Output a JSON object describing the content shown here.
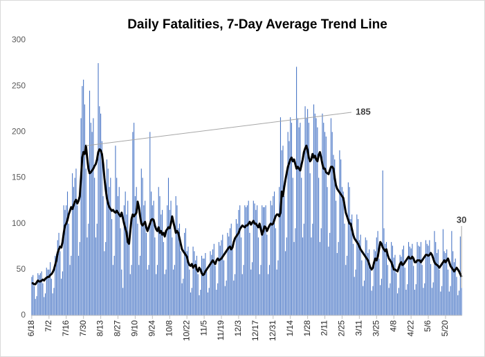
{
  "chart_data": {
    "type": "combo",
    "title": "Daily Fatalities, 7-Day Average Trend Line",
    "categories": [
      "6/18",
      null,
      null,
      null,
      null,
      null,
      null,
      null,
      null,
      null,
      null,
      null,
      null,
      null,
      "7/2",
      null,
      null,
      null,
      null,
      null,
      null,
      null,
      null,
      null,
      null,
      null,
      null,
      null,
      "7/16",
      null,
      null,
      null,
      null,
      null,
      null,
      null,
      null,
      null,
      null,
      null,
      null,
      null,
      "7/30",
      null,
      null,
      null,
      null,
      null,
      null,
      null,
      null,
      null,
      null,
      null,
      null,
      null,
      "8/13",
      null,
      null,
      null,
      null,
      null,
      null,
      null,
      null,
      null,
      null,
      null,
      null,
      null,
      "8/27",
      null,
      null,
      null,
      null,
      null,
      null,
      null,
      null,
      null,
      null,
      null,
      null,
      null,
      "9/10",
      null,
      null,
      null,
      null,
      null,
      null,
      null,
      null,
      null,
      null,
      null,
      null,
      null,
      "9/24",
      null,
      null,
      null,
      null,
      null,
      null,
      null,
      null,
      null,
      null,
      null,
      null,
      null,
      "10/8",
      null,
      null,
      null,
      null,
      null,
      null,
      null,
      null,
      null,
      null,
      null,
      null,
      null,
      "10/22",
      null,
      null,
      null,
      null,
      null,
      null,
      null,
      null,
      null,
      null,
      null,
      null,
      null,
      "11/5",
      null,
      null,
      null,
      null,
      null,
      null,
      null,
      null,
      null,
      null,
      null,
      null,
      null,
      "11/19",
      null,
      null,
      null,
      null,
      null,
      null,
      null,
      null,
      null,
      null,
      null,
      null,
      null,
      "12/3",
      null,
      null,
      null,
      null,
      null,
      null,
      null,
      null,
      null,
      null,
      null,
      null,
      null,
      "12/17",
      null,
      null,
      null,
      null,
      null,
      null,
      null,
      null,
      null,
      null,
      null,
      null,
      null,
      "12/31",
      null,
      null,
      null,
      null,
      null,
      null,
      null,
      null,
      null,
      null,
      null,
      null,
      null,
      "1/14",
      null,
      null,
      null,
      null,
      null,
      null,
      null,
      null,
      null,
      null,
      null,
      null,
      null,
      "1/28",
      null,
      null,
      null,
      null,
      null,
      null,
      null,
      null,
      null,
      null,
      null,
      null,
      null,
      "2/11",
      null,
      null,
      null,
      null,
      null,
      null,
      null,
      null,
      null,
      null,
      null,
      null,
      null,
      "2/25",
      null,
      null,
      null,
      null,
      null,
      null,
      null,
      null,
      null,
      null,
      null,
      null,
      null,
      "3/11",
      null,
      null,
      null,
      null,
      null,
      null,
      null,
      null,
      null,
      null,
      null,
      null,
      null,
      "3/25",
      null,
      null,
      null,
      null,
      null,
      null,
      null,
      null,
      null,
      null,
      null,
      null,
      null,
      "4/8",
      null,
      null,
      null,
      null,
      null,
      null,
      null,
      null,
      null,
      null,
      null,
      null,
      null,
      "4/22",
      null,
      null,
      null,
      null,
      null,
      null,
      null,
      null,
      null,
      null,
      null,
      null,
      null,
      "5/6",
      null,
      null,
      null,
      null,
      null,
      null,
      null,
      null,
      null,
      null,
      null,
      null,
      null,
      "5/20",
      null,
      null,
      null,
      null,
      null,
      null,
      null,
      null,
      null,
      null,
      null,
      null,
      null
    ],
    "series": [
      {
        "kind": "bar",
        "color": "#4472c4",
        "values": [
          42,
          44,
          32,
          18,
          21,
          46,
          44,
          46,
          48,
          35,
          20,
          24,
          52,
          50,
          50,
          58,
          40,
          24,
          30,
          65,
          67,
          82,
          90,
          70,
          40,
          48,
          120,
          115,
          120,
          135,
          100,
          55,
          65,
          155,
          140,
          150,
          160,
          120,
          65,
          80,
          215,
          250,
          257,
          230,
          160,
          85,
          100,
          245,
          210,
          200,
          215,
          150,
          85,
          100,
          275,
          228,
          220,
          190,
          130,
          70,
          80,
          170,
          160,
          140,
          150,
          105,
          55,
          65,
          185,
          150,
          130,
          140,
          95,
          50,
          30,
          120,
          135,
          110,
          125,
          85,
          45,
          55,
          200,
          210,
          130,
          140,
          100,
          55,
          65,
          160,
          150,
          120,
          125,
          90,
          50,
          55,
          200,
          135,
          120,
          125,
          85,
          45,
          55,
          140,
          130,
          110,
          115,
          80,
          45,
          50,
          120,
          150,
          115,
          125,
          85,
          50,
          55,
          130,
          120,
          95,
          100,
          70,
          35,
          40,
          90,
          95,
          70,
          75,
          50,
          25,
          30,
          75,
          70,
          60,
          65,
          45,
          22,
          28,
          65,
          62,
          62,
          68,
          48,
          25,
          30,
          70,
          66,
          72,
          78,
          54,
          28,
          35,
          80,
          76,
          82,
          88,
          60,
          32,
          38,
          90,
          86,
          95,
          100,
          72,
          38,
          45,
          105,
          100,
          115,
          120,
          85,
          45,
          55,
          120,
          118,
          120,
          125,
          90,
          50,
          58,
          125,
          122,
          115,
          120,
          85,
          45,
          55,
          120,
          118,
          118,
          120,
          88,
          45,
          55,
          125,
          120,
          130,
          135,
          95,
          50,
          60,
          140,
          216,
          180,
          185,
          130,
          70,
          85,
          200,
          190,
          216,
          210,
          150,
          80,
          95,
          271,
          215,
          205,
          210,
          150,
          85,
          100,
          228,
          215,
          225,
          210,
          155,
          85,
          100,
          230,
          220,
          215,
          205,
          150,
          80,
          95,
          220,
          210,
          200,
          195,
          140,
          75,
          90,
          215,
          200,
          175,
          170,
          125,
          68,
          80,
          180,
          170,
          140,
          135,
          100,
          55,
          65,
          145,
          140,
          105,
          110,
          78,
          42,
          50,
          110,
          105,
          82,
          88,
          60,
          32,
          38,
          85,
          82,
          68,
          72,
          50,
          27,
          32,
          72,
          70,
          85,
          92,
          62,
          33,
          40,
          158,
          95,
          78,
          80,
          55,
          30,
          35,
          80,
          76,
          63,
          66,
          46,
          24,
          30,
          66,
          64,
          72,
          76,
          52,
          28,
          34,
          80,
          75,
          73,
          78,
          54,
          28,
          34,
          80,
          76,
          75,
          80,
          55,
          30,
          35,
          82,
          78,
          76,
          82,
          56,
          30,
          36,
          92,
          80,
          68,
          72,
          50,
          26,
          32,
          94,
          70,
          68,
          72,
          50,
          26,
          32,
          92,
          70,
          58,
          62,
          42,
          22,
          27,
          86,
          30
        ]
      },
      {
        "kind": "line",
        "color": "#000000",
        "values": [
          35,
          35,
          34,
          34,
          36,
          38,
          37,
          37,
          38,
          39,
          38,
          40,
          41,
          42,
          42,
          44,
          45,
          47,
          50,
          55,
          60,
          68,
          72,
          75,
          74,
          80,
          90,
          98,
          100,
          104,
          110,
          114,
          118,
          116,
          120,
          124,
          126,
          122,
          125,
          130,
          150,
          172,
          178,
          176,
          185,
          172,
          160,
          155,
          156,
          158,
          160,
          163,
          165,
          170,
          178,
          181,
          180,
          176,
          165,
          150,
          138,
          128,
          122,
          118,
          116,
          114,
          115,
          113,
          112,
          114,
          112,
          110,
          108,
          112,
          106,
          100,
          95,
          90,
          80,
          78,
          92,
          105,
          110,
          108,
          110,
          112,
          124,
          118,
          108,
          100,
          98,
          100,
          102,
          96,
          92,
          96,
          100,
          104,
          105,
          104,
          98,
          94,
          92,
          96,
          90,
          92,
          88,
          90,
          86,
          92,
          94,
          96,
          95,
          100,
          108,
          102,
          96,
          90,
          92,
          90,
          84,
          78,
          72,
          70,
          68,
          66,
          64,
          58,
          55,
          54,
          56,
          52,
          54,
          55,
          50,
          48,
          52,
          50,
          46,
          44,
          45,
          48,
          50,
          52,
          54,
          56,
          58,
          60,
          58,
          56,
          60,
          62,
          60,
          61,
          62,
          64,
          66,
          68,
          70,
          72,
          74,
          75,
          72,
          74,
          80,
          84,
          86,
          88,
          90,
          94,
          96,
          98,
          97,
          96,
          98,
          98,
          100,
          102,
          99,
          101,
          103,
          100,
          100,
          98,
          96,
          100,
          94,
          88,
          92,
          97,
          96,
          92,
          95,
          98,
          100,
          99,
          100,
          104,
          108,
          110,
          110,
          108,
          112,
          135,
          130,
          140,
          148,
          155,
          162,
          166,
          170,
          172,
          168,
          170,
          165,
          160,
          162,
          160,
          158,
          164,
          170,
          178,
          182,
          185,
          180,
          172,
          168,
          170,
          176,
          172,
          174,
          170,
          168,
          175,
          178,
          172,
          165,
          160,
          160,
          156,
          155,
          154,
          158,
          162,
          162,
          160,
          150,
          142,
          138,
          136,
          134,
          132,
          130,
          128,
          120,
          112,
          108,
          104,
          100,
          100,
          94,
          88,
          84,
          82,
          80,
          78,
          75,
          72,
          70,
          68,
          66,
          64,
          62,
          60,
          56,
          52,
          50,
          52,
          58,
          62,
          60,
          64,
          72,
          80,
          78,
          74,
          72,
          70,
          72,
          66,
          62,
          60,
          58,
          54,
          50,
          50,
          49,
          48,
          52,
          56,
          58,
          55,
          56,
          58,
          60,
          62,
          64,
          62,
          62,
          64,
          62,
          58,
          58,
          60,
          60,
          60,
          58,
          60,
          62,
          64,
          66,
          66,
          65,
          66,
          68,
          66,
          62,
          58,
          56,
          55,
          54,
          52,
          54,
          56,
          58,
          60,
          58,
          60,
          62,
          58,
          54,
          52,
          50,
          48,
          50,
          52,
          50,
          48,
          45,
          42
        ]
      }
    ],
    "ylim": [
      0,
      300
    ],
    "yticks": [
      0,
      50,
      100,
      150,
      200,
      250,
      300
    ],
    "grid": false
  }
}
